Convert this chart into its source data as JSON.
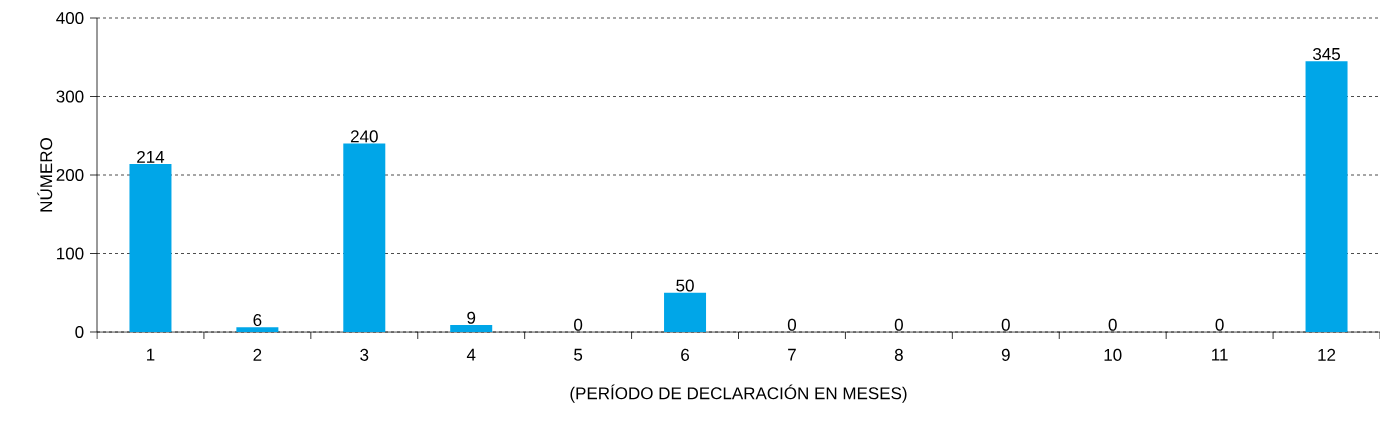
{
  "chart_data": {
    "type": "bar",
    "xlabel": "(PERÍODO DE DECLARACIÓN EN MESES)",
    "ylabel": "NÚMERO",
    "categories": [
      "1",
      "2",
      "3",
      "4",
      "5",
      "6",
      "7",
      "8",
      "9",
      "10",
      "11",
      "12"
    ],
    "values": [
      214,
      6,
      240,
      9,
      0,
      50,
      0,
      0,
      0,
      0,
      0,
      345
    ],
    "color": "#00a6e8",
    "ylim": [
      0,
      400
    ],
    "yticks": [
      0,
      100,
      200,
      300,
      400
    ],
    "grid": "y",
    "data_labels": true
  }
}
